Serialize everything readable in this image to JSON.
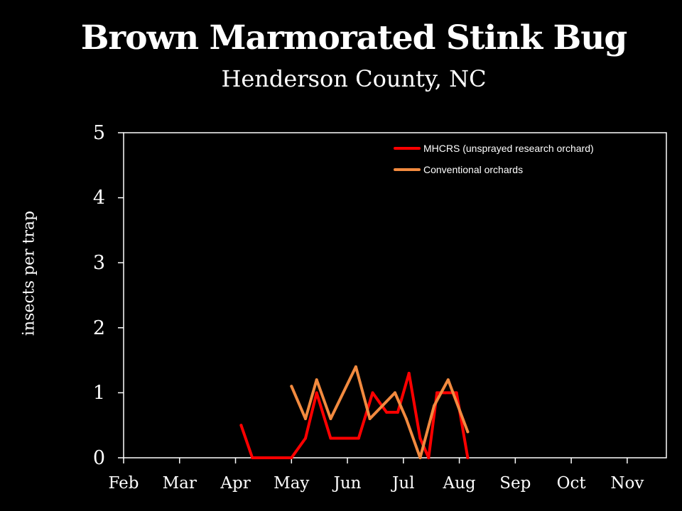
{
  "chart_data": {
    "type": "line",
    "title": "Brown Marmorated Stink Bug",
    "subtitle": "Henderson County, NC",
    "xlabel": "",
    "ylabel": "insects per trap",
    "categories": [
      "Feb",
      "Mar",
      "Apr",
      "May",
      "Jun",
      "Jul",
      "Aug",
      "Sep",
      "Oct",
      "Nov"
    ],
    "xlim": [
      0,
      9.7
    ],
    "ylim": [
      0,
      5
    ],
    "yticks": [
      0,
      1,
      2,
      3,
      4,
      5
    ],
    "grid": false,
    "legend_position": "top-right",
    "series": [
      {
        "name": "MHCRS (unsprayed research orchard)",
        "color": "#ff0000",
        "x": [
          2.1,
          2.3,
          2.8,
          3.0,
          3.25,
          3.45,
          3.7,
          3.95,
          4.2,
          4.45,
          4.7,
          4.9,
          5.1,
          5.3,
          5.45,
          5.6,
          5.75,
          5.95,
          6.15
        ],
        "y": [
          0.5,
          0,
          0,
          0,
          0.3,
          1.0,
          0.3,
          0.3,
          0.3,
          1.0,
          0.7,
          0.7,
          1.3,
          0.3,
          0,
          1.0,
          1.0,
          1.0,
          0
        ]
      },
      {
        "name": "Conventional orchards",
        "color": "#f28a3f",
        "x": [
          3.0,
          3.25,
          3.45,
          3.7,
          4.15,
          4.4,
          4.85,
          5.05,
          5.3,
          5.55,
          5.8,
          6.15
        ],
        "y": [
          1.1,
          0.6,
          1.2,
          0.6,
          1.4,
          0.6,
          1.0,
          0.6,
          0,
          0.8,
          1.2,
          0.4
        ]
      }
    ]
  }
}
